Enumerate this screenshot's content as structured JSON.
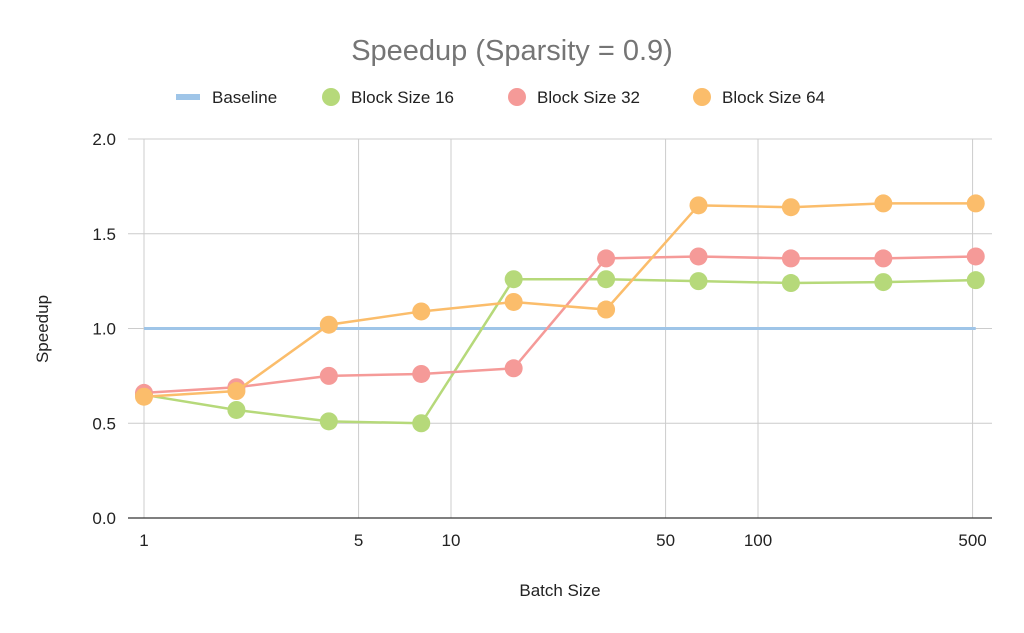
{
  "chart_data": {
    "type": "line",
    "title": "Speedup (Sparsity = 0.9)",
    "xlabel": "Batch Size",
    "ylabel": "Speedup",
    "x_scale": "log",
    "xlim": [
      1,
      512
    ],
    "ylim": [
      0,
      2.0
    ],
    "x_ticks": [
      1,
      5,
      10,
      50,
      100,
      500
    ],
    "x_tick_labels": [
      "1",
      "5",
      "10",
      "50",
      "100",
      "500"
    ],
    "y_ticks": [
      0,
      0.5,
      1.0,
      1.5,
      2.0
    ],
    "y_tick_labels": [
      "0.0",
      "0.5",
      "1.0",
      "1.5",
      "2.0"
    ],
    "grid": true,
    "legend_position": "top",
    "x": [
      1,
      2,
      4,
      8,
      16,
      32,
      64,
      128,
      256,
      512
    ],
    "series": [
      {
        "name": "Baseline",
        "color": "#9fc5e8",
        "markers": false,
        "values": [
          1,
          1,
          1,
          1,
          1,
          1,
          1,
          1,
          1,
          1
        ]
      },
      {
        "name": "Block Size 16",
        "color": "#b6d97a",
        "markers": true,
        "values": [
          0.65,
          0.57,
          0.51,
          0.5,
          1.26,
          1.26,
          1.25,
          1.24,
          1.245,
          1.255
        ]
      },
      {
        "name": "Block Size 32",
        "color": "#f59a98",
        "markers": true,
        "values": [
          0.66,
          0.69,
          0.75,
          0.76,
          0.79,
          1.37,
          1.38,
          1.37,
          1.37,
          1.38
        ]
      },
      {
        "name": "Block Size 64",
        "color": "#fbbd6b",
        "markers": true,
        "values": [
          0.64,
          0.67,
          1.02,
          1.09,
          1.14,
          1.1,
          1.65,
          1.64,
          1.66,
          1.66
        ]
      }
    ]
  }
}
